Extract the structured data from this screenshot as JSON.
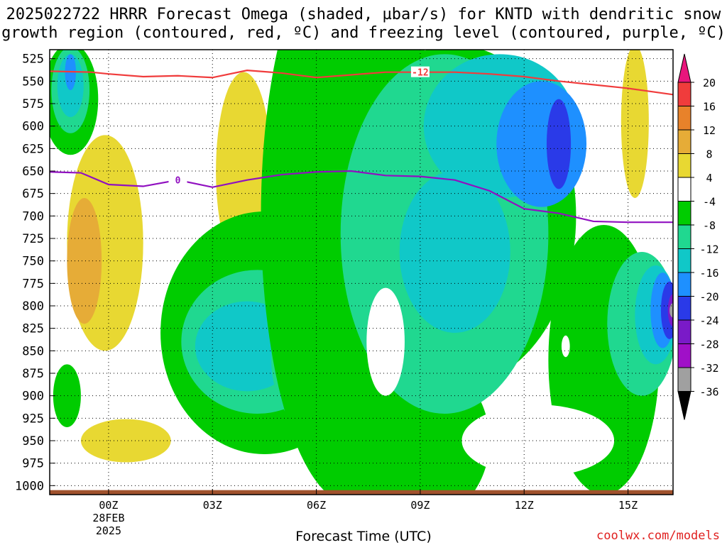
{
  "title_line1": "2025022722 HRRR Forecast Omega (shaded, µbar/s) for KNTD with dendritic snow",
  "title_line2": "growth region (contoured, red, ºC) and freezing level (contoured, purple, ºC)",
  "credit": "coolwx.com/models",
  "chart_data": {
    "type": "heatmap",
    "title": "2025022722 HRRR Forecast Omega (shaded, µbar/s) for KNTD with dendritic snow growth region (contoured, red, ºC) and freezing level (contoured, purple, ºC)",
    "xlabel": "Forecast Time (UTC)",
    "ylabel": "",
    "x_range_hours": [
      -1.7,
      16.3
    ],
    "y_range_mb": [
      515,
      1010
    ],
    "y_reversed": true,
    "grid": true,
    "y_ticks": [
      525,
      550,
      575,
      600,
      625,
      650,
      675,
      700,
      725,
      750,
      775,
      800,
      825,
      850,
      875,
      900,
      925,
      950,
      975,
      1000
    ],
    "x_ticks": [
      {
        "hour": 0,
        "label": "00Z",
        "sub1": "28FEB",
        "sub2": "2025"
      },
      {
        "hour": 3,
        "label": "03Z"
      },
      {
        "hour": 6,
        "label": "06Z"
      },
      {
        "hour": 9,
        "label": "09Z"
      },
      {
        "hour": 12,
        "label": "12Z"
      },
      {
        "hour": 15,
        "label": "15Z"
      }
    ],
    "colorbar": {
      "labels": [
        "20",
        "16",
        "12",
        "8",
        "4",
        "-4",
        "-8",
        "-12",
        "-16",
        "-20",
        "-24",
        "-28",
        "-32",
        "-36"
      ],
      "bins": [
        {
          "range": "> 20",
          "color": "#e8157c"
        },
        {
          "range": "16..20",
          "color": "#f03c3c"
        },
        {
          "range": "12..16",
          "color": "#e8822a"
        },
        {
          "range": "8..12",
          "color": "#e6ac37"
        },
        {
          "range": "4..8",
          "color": "#e8d832"
        },
        {
          "range": "-4..4",
          "color": "#ffffff"
        },
        {
          "range": "-8..-4",
          "color": "#00cc00"
        },
        {
          "range": "-12..-8",
          "color": "#20d890"
        },
        {
          "range": "-16..-12",
          "color": "#10c8c8"
        },
        {
          "range": "-20..-16",
          "color": "#1e90ff"
        },
        {
          "range": "-24..-20",
          "color": "#2a3ae8"
        },
        {
          "range": "-28..-24",
          "color": "#7a1ac8"
        },
        {
          "range": "-32..-28",
          "color": "#a010c8"
        },
        {
          "range": "-36..-32",
          "color": "#a0a0a0"
        },
        {
          "range": "< -36",
          "color": "#000000"
        }
      ]
    },
    "contours": {
      "dgz_minus12": {
        "label": "-12",
        "color": "#f03c3c",
        "points": [
          [
            -1.7,
            539
          ],
          [
            -0.5,
            540
          ],
          [
            0,
            542
          ],
          [
            1,
            545
          ],
          [
            2,
            544
          ],
          [
            3,
            546
          ],
          [
            4,
            538
          ],
          [
            5,
            541
          ],
          [
            6,
            546
          ],
          [
            7,
            543
          ],
          [
            8,
            540
          ],
          [
            9,
            540
          ],
          [
            10,
            540
          ],
          [
            11,
            542
          ],
          [
            12,
            545
          ],
          [
            13,
            550
          ],
          [
            14,
            554
          ],
          [
            15,
            558
          ],
          [
            16.3,
            565
          ]
        ]
      },
      "freezing_level_0": {
        "label": "0",
        "color": "#9010c0",
        "points": [
          [
            -1.7,
            651
          ],
          [
            -0.8,
            652
          ],
          [
            0,
            665
          ],
          [
            1,
            667
          ],
          [
            2,
            660
          ],
          [
            3,
            668
          ],
          [
            4,
            660
          ],
          [
            5,
            654
          ],
          [
            6,
            651
          ],
          [
            7,
            650
          ],
          [
            8,
            655
          ],
          [
            9,
            656
          ],
          [
            10,
            660
          ],
          [
            11,
            672
          ],
          [
            12,
            692
          ],
          [
            13,
            697
          ],
          [
            14,
            706
          ],
          [
            15,
            707
          ],
          [
            16.3,
            707
          ]
        ]
      }
    },
    "omega_features": [
      {
        "category": "4..8",
        "hour": -0.1,
        "mb": 730,
        "hw": 1.1,
        "hh": 120
      },
      {
        "category": "8..12",
        "hour": -0.7,
        "mb": 750,
        "hw": 0.5,
        "hh": 70
      },
      {
        "category": "4..8",
        "hour": 3.9,
        "mb": 650,
        "hw": 0.8,
        "hh": 110
      },
      {
        "category": "4..8",
        "hour": 0.5,
        "mb": 950,
        "hw": 1.3,
        "hh": 24
      },
      {
        "category": "4..8",
        "hour": 11.5,
        "mb": 958,
        "hw": 2.7,
        "hh": 22
      },
      {
        "category": "4..8",
        "hour": 15.2,
        "mb": 595,
        "hw": 0.4,
        "hh": 85
      },
      {
        "category": "-8..-4",
        "hour": -1.1,
        "mb": 570,
        "hw": 0.8,
        "hh": 62
      },
      {
        "category": "-12..-8",
        "hour": -1.1,
        "mb": 560,
        "hw": 0.55,
        "hh": 48
      },
      {
        "category": "-16..-12",
        "hour": -1.1,
        "mb": 555,
        "hw": 0.38,
        "hh": 35
      },
      {
        "category": "-20..-16",
        "hour": -1.1,
        "mb": 540,
        "hw": 0.16,
        "hh": 20
      },
      {
        "category": "-8..-4",
        "hour": -1.2,
        "mb": 900,
        "hw": 0.4,
        "hh": 35
      },
      {
        "category": "-8..-4",
        "hour": 4.5,
        "mb": 830,
        "hw": 3.0,
        "hh": 135
      },
      {
        "category": "-12..-8",
        "hour": 4.3,
        "mb": 840,
        "hw": 2.2,
        "hh": 80
      },
      {
        "category": "-16..-12",
        "hour": 4.0,
        "mb": 845,
        "hw": 1.5,
        "hh": 50
      },
      {
        "category": "-12..-8",
        "hour": 6.0,
        "mb": 860,
        "hw": 1.3,
        "hh": 80
      },
      {
        "category": "-16..-12",
        "hour": 6.0,
        "mb": 865,
        "hw": 0.7,
        "hh": 62
      },
      {
        "category": "-20..-16",
        "hour": 6.0,
        "mb": 870,
        "hw": 0.35,
        "hh": 45
      },
      {
        "category": "-24..-20",
        "hour": 6.0,
        "mb": 878,
        "hw": 0.15,
        "hh": 35
      },
      {
        "category": "-8..-4",
        "hour": 7.0,
        "mb": 700,
        "hw": 2.6,
        "hh": 320
      },
      {
        "category": "-8..-4",
        "hour": 9.0,
        "mb": 950,
        "hw": 2.0,
        "hh": 90
      },
      {
        "category": "-8..-4",
        "hour": 10.0,
        "mb": 700,
        "hw": 3.5,
        "hh": 190
      },
      {
        "category": "-12..-8",
        "hour": 9.7,
        "mb": 720,
        "hw": 3.0,
        "hh": 200
      },
      {
        "category": "-16..-12",
        "hour": 11.3,
        "mb": 600,
        "hw": 2.2,
        "hh": 80
      },
      {
        "category": "-16..-12",
        "hour": 10.0,
        "mb": 740,
        "hw": 1.6,
        "hh": 90
      },
      {
        "category": "-20..-16",
        "hour": 12.5,
        "mb": 620,
        "hw": 1.3,
        "hh": 70
      },
      {
        "category": "-24..-20",
        "hour": 13.0,
        "mb": 620,
        "hw": 0.35,
        "hh": 50
      },
      {
        "category": "-8..-4",
        "hour": 14.3,
        "mb": 860,
        "hw": 1.6,
        "hh": 150
      },
      {
        "category": "-12..-8",
        "hour": 15.4,
        "mb": 820,
        "hw": 1.0,
        "hh": 80
      },
      {
        "category": "-16..-12",
        "hour": 15.8,
        "mb": 810,
        "hw": 0.6,
        "hh": 55
      },
      {
        "category": "-20..-16",
        "hour": 16.0,
        "mb": 805,
        "hw": 0.35,
        "hh": 42
      },
      {
        "category": "-24..-20",
        "hour": 16.2,
        "mb": 805,
        "hw": 0.25,
        "hh": 32
      },
      {
        "category": "-28..-24",
        "hour": 16.3,
        "mb": 805,
        "hw": 0.15,
        "hh": 18
      },
      {
        "category": "-36..-32",
        "hour": 16.3,
        "mb": 805,
        "hw": 0.1,
        "hh": 8
      },
      {
        "category": "-4..4",
        "hour": 8.0,
        "mb": 840,
        "hw": 0.55,
        "hh": 60
      },
      {
        "category": "-4..4",
        "hour": 13.2,
        "mb": 845,
        "hw": 0.12,
        "hh": 12
      },
      {
        "category": "-4..4",
        "hour": 12.4,
        "mb": 950,
        "hw": 2.2,
        "hh": 40
      }
    ]
  }
}
